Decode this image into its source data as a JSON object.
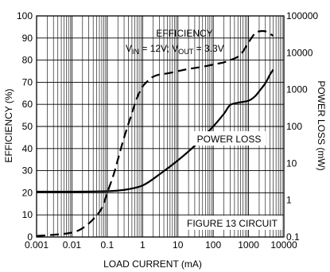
{
  "chart_data": {
    "type": "line",
    "x_scale": "log",
    "xlim": [
      0.001,
      10000
    ],
    "x_ticks": [
      0.001,
      0.01,
      0.1,
      1,
      10,
      100,
      1000,
      10000
    ],
    "x_tick_labels": [
      "0.001",
      "0.01",
      "0.1",
      "1",
      "10",
      "100",
      "1000",
      "10000"
    ],
    "xlabel": "LOAD CURRENT (mA)",
    "ylabel_left": "EFFICIENCY (%)",
    "ylim_left": [
      0,
      100
    ],
    "y_ticks_left": [
      0,
      10,
      20,
      30,
      40,
      50,
      60,
      70,
      80,
      90,
      100
    ],
    "y_tick_labels_left": [
      "0",
      "10",
      "20",
      "30",
      "40",
      "50",
      "60",
      "70",
      "80",
      "90",
      "100"
    ],
    "ylabel_right": "POWER LOSS (mW)",
    "y_scale_right": "log",
    "ylim_right": [
      0.1,
      100000
    ],
    "y_ticks_right": [
      0.1,
      1,
      10,
      100,
      1000,
      10000,
      100000
    ],
    "y_tick_labels_right": [
      "0.1",
      "1",
      "10",
      "100",
      "1000",
      "10000",
      "100000"
    ],
    "grid": true,
    "annotations": {
      "efficiency_label": "EFFICIENCY",
      "conditions_vin": "V",
      "conditions_vin_sub": "IN",
      "conditions_mid": " = 12V; V",
      "conditions_vout_sub": "OUT",
      "conditions_end": " = 3.3V",
      "power_loss_label": "POWER LOSS",
      "figure_label": "FIGURE 13 CIRCUIT"
    },
    "series": [
      {
        "axis": "left",
        "style": "dashed",
        "x": [
          0.001,
          0.003,
          0.01,
          0.02,
          0.04,
          0.07,
          0.1,
          0.15,
          0.2,
          0.3,
          0.5,
          0.7,
          1,
          1.5,
          2,
          3,
          5,
          10,
          20,
          50,
          100,
          200,
          300,
          500,
          700,
          1000,
          1500,
          2000,
          3000,
          5000
        ],
        "y": [
          0.5,
          1,
          2,
          4,
          8,
          13,
          20,
          28,
          35,
          45,
          56,
          63,
          68,
          71,
          72.5,
          73.5,
          74,
          75,
          76,
          77,
          78,
          79,
          80,
          81.5,
          84,
          88,
          92,
          93,
          93,
          91
        ]
      },
      {
        "axis": "right",
        "style": "solid",
        "x": [
          0.001,
          0.01,
          0.1,
          0.3,
          1,
          3,
          10,
          30,
          100,
          200,
          300,
          500,
          1000,
          1500,
          2000,
          3000,
          4000,
          5000
        ],
        "y": [
          1.7,
          1.7,
          1.75,
          1.9,
          2.5,
          5,
          12,
          30,
          100,
          220,
          380,
          440,
          500,
          650,
          900,
          1500,
          2500,
          3500
        ]
      }
    ]
  }
}
